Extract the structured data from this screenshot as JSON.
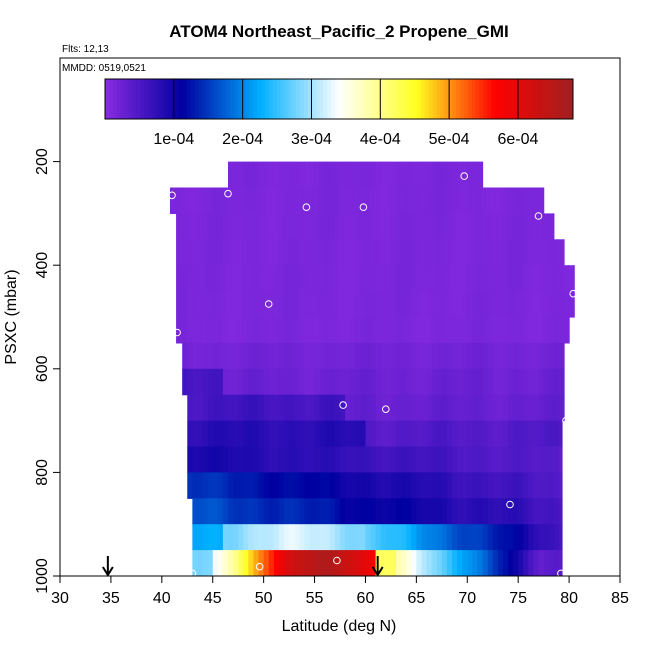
{
  "chart_data": {
    "type": "heatmap",
    "title": "ATOM4 Northeast_Pacific_2 Propene_GMI",
    "flights_label": "Flts: 12,13",
    "dates_label": "MMDD: 0519,0521",
    "xlabel": "Latitude (deg N)",
    "ylabel": "PSXC (mbar)",
    "xlim": [
      30,
      85
    ],
    "ylim": [
      1000,
      0
    ],
    "x_ticks": [
      "30",
      "35",
      "40",
      "45",
      "50",
      "55",
      "60",
      "65",
      "70",
      "75",
      "80",
      "85"
    ],
    "y_ticks": [
      "200",
      "400",
      "600",
      "800",
      "1000"
    ],
    "colorbar": {
      "range": [
        0,
        0.00068
      ],
      "tick_values": [
        0.0001,
        0.0002,
        0.0003,
        0.0004,
        0.0005,
        0.0006
      ],
      "tick_labels": [
        "1e-04",
        "2e-04",
        "3e-04",
        "4e-04",
        "5e-04",
        "6e-04"
      ],
      "colors": [
        "#8a2be2",
        "#0000a0",
        "#00b0ff",
        "#ffffff",
        "#ffff20",
        "#ff0000",
        "#a02020"
      ]
    },
    "row_lat_ranges": [
      {
        "p": [
          200,
          250
        ],
        "x": [
          46.5,
          71.5
        ]
      },
      {
        "p": [
          250,
          300
        ],
        "x": [
          40.8,
          77.5
        ]
      },
      {
        "p": [
          300,
          350
        ],
        "x": [
          41.4,
          78.5
        ]
      },
      {
        "p": [
          350,
          400
        ],
        "x": [
          41.4,
          79.5
        ]
      },
      {
        "p": [
          400,
          450
        ],
        "x": [
          41.4,
          80.5
        ]
      },
      {
        "p": [
          450,
          500
        ],
        "x": [
          41.4,
          80.5
        ]
      },
      {
        "p": [
          500,
          550
        ],
        "x": [
          41.4,
          80.0
        ]
      },
      {
        "p": [
          550,
          600
        ],
        "x": [
          42.0,
          79.5
        ]
      },
      {
        "p": [
          600,
          650
        ],
        "x": [
          42.0,
          79.5
        ]
      },
      {
        "p": [
          650,
          700
        ],
        "x": [
          42.5,
          79.5
        ]
      },
      {
        "p": [
          700,
          750
        ],
        "x": [
          42.5,
          79.3
        ]
      },
      {
        "p": [
          750,
          800
        ],
        "x": [
          42.5,
          79.3
        ]
      },
      {
        "p": [
          800,
          850
        ],
        "x": [
          42.5,
          79.3
        ]
      },
      {
        "p": [
          850,
          900
        ],
        "x": [
          43.0,
          79.3
        ]
      },
      {
        "p": [
          900,
          950
        ],
        "x": [
          43.0,
          79.3
        ]
      },
      {
        "p": [
          950,
          1000
        ],
        "x": [
          43.0,
          79.3
        ]
      }
    ],
    "flight_points": [
      [
        41.0,
        265
      ],
      [
        46.5,
        262
      ],
      [
        54.2,
        288
      ],
      [
        59.8,
        288
      ],
      [
        69.7,
        228
      ],
      [
        77.0,
        305
      ],
      [
        80.4,
        455
      ],
      [
        50.5,
        475
      ],
      [
        41.5,
        530
      ],
      [
        57.8,
        670
      ],
      [
        62.0,
        678
      ],
      [
        79.7,
        700
      ],
      [
        74.2,
        862
      ],
      [
        43.0,
        995
      ],
      [
        49.6,
        982
      ],
      [
        57.2,
        970
      ],
      [
        79.2,
        995
      ]
    ],
    "arrows_lat": [
      34.7,
      61.2
    ]
  }
}
